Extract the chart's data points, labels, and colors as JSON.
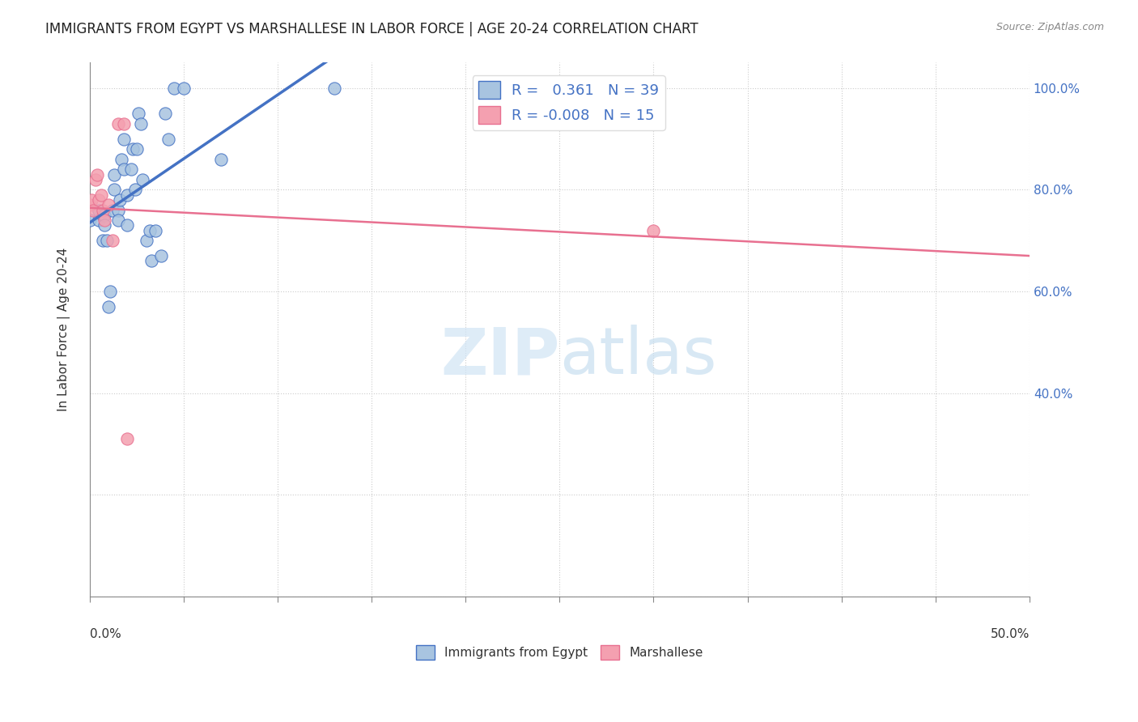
{
  "title": "IMMIGRANTS FROM EGYPT VS MARSHALLESE IN LABOR FORCE | AGE 20-24 CORRELATION CHART",
  "source": "Source: ZipAtlas.com",
  "ylabel": "In Labor Force | Age 20-24",
  "xlim": [
    0.0,
    0.5
  ],
  "ylim": [
    0.0,
    1.05
  ],
  "r_egypt": 0.361,
  "n_egypt": 39,
  "r_marshallese": -0.008,
  "n_marshallese": 15,
  "egypt_color": "#a8c4e0",
  "marshallese_color": "#f4a0b0",
  "egypt_line_color": "#4472c4",
  "marshallese_line_color": "#e87090",
  "egypt_points_x": [
    0.0,
    0.005,
    0.005,
    0.007,
    0.007,
    0.008,
    0.008,
    0.009,
    0.01,
    0.011,
    0.012,
    0.013,
    0.013,
    0.015,
    0.015,
    0.016,
    0.017,
    0.018,
    0.018,
    0.02,
    0.02,
    0.022,
    0.023,
    0.024,
    0.025,
    0.026,
    0.027,
    0.028,
    0.03,
    0.032,
    0.033,
    0.035,
    0.038,
    0.04,
    0.042,
    0.045,
    0.05,
    0.07,
    0.13
  ],
  "egypt_points_y": [
    0.74,
    0.74,
    0.76,
    0.7,
    0.75,
    0.75,
    0.73,
    0.7,
    0.57,
    0.6,
    0.76,
    0.83,
    0.8,
    0.76,
    0.74,
    0.78,
    0.86,
    0.9,
    0.84,
    0.79,
    0.73,
    0.84,
    0.88,
    0.8,
    0.88,
    0.95,
    0.93,
    0.82,
    0.7,
    0.72,
    0.66,
    0.72,
    0.67,
    0.95,
    0.9,
    1.0,
    1.0,
    0.86,
    1.0
  ],
  "marshallese_points_x": [
    0.0,
    0.001,
    0.002,
    0.003,
    0.004,
    0.005,
    0.006,
    0.007,
    0.008,
    0.01,
    0.012,
    0.015,
    0.018,
    0.02,
    0.3
  ],
  "marshallese_points_y": [
    0.77,
    0.78,
    0.76,
    0.82,
    0.83,
    0.78,
    0.79,
    0.76,
    0.74,
    0.77,
    0.7,
    0.93,
    0.93,
    0.31,
    0.72
  ]
}
